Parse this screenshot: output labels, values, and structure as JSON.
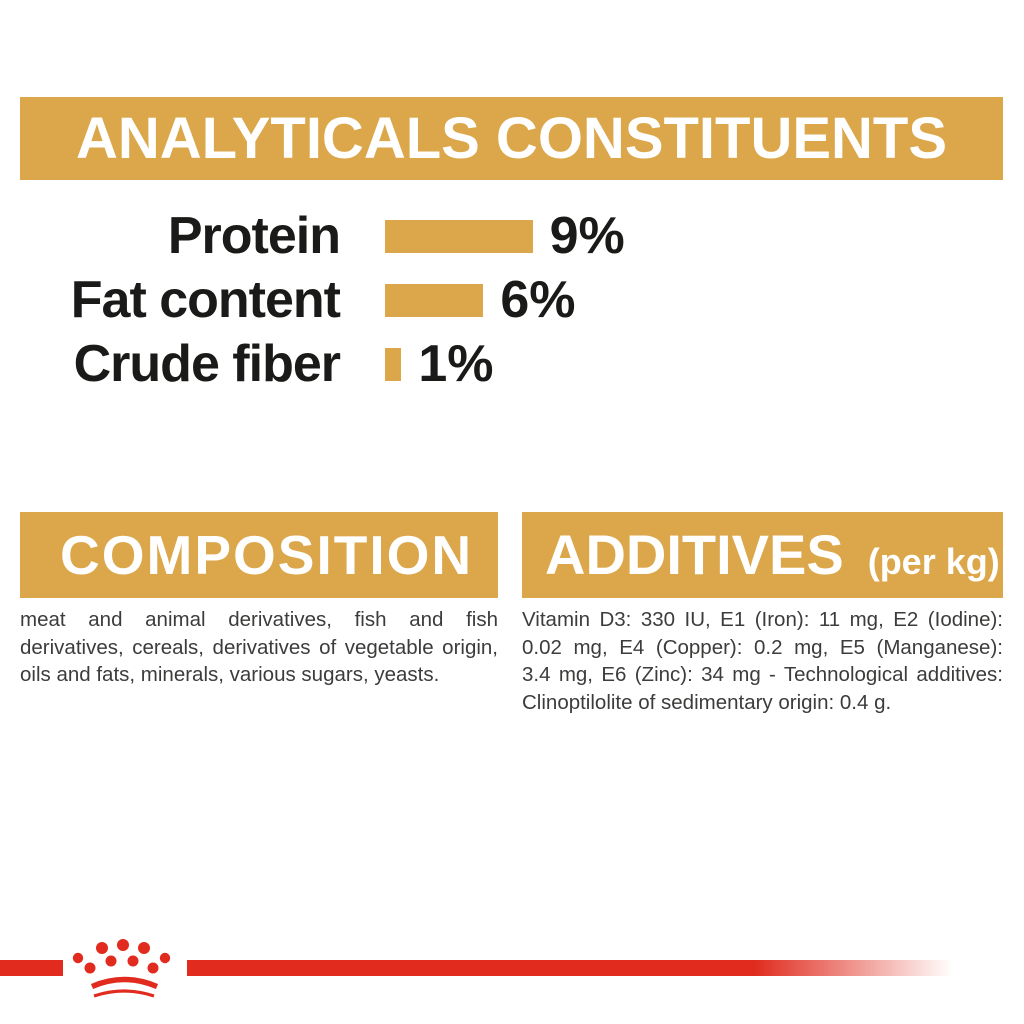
{
  "analyticals": {
    "title": "ANALYTICALS CONSTITUENTS",
    "rows": [
      {
        "label": "Protein",
        "percent": 9,
        "value": "9%"
      },
      {
        "label": "Fat content",
        "percent": 6,
        "value": "6%"
      },
      {
        "label": "Crude fiber",
        "percent": 1,
        "value": "1%"
      }
    ]
  },
  "composition": {
    "title": "COMPOSITION",
    "lines": [
      "meat and animal derivatives, fish and fish",
      "derivatives, cereals, derivatives of vegetable origin,",
      "oils and fats, minerals, various sugars, yeasts."
    ]
  },
  "additives": {
    "title": "ADDITIVES",
    "title_suffix": "(per kg)",
    "lines": [
      "Vitamin D3: 330 IU, E1 (Iron): 11 mg, E2 (Iodine):",
      "0.02 mg, E4 (Copper): 0.2 mg, E5 (Manganese):",
      "3.4 mg, E6 (Zinc): 34 mg - Technological additives:",
      "Clinoptilolite of sedimentary origin: 0.4 g."
    ]
  },
  "brand": {
    "logo": "royal-canin-crown"
  },
  "colors": {
    "gold": "#DBA74A",
    "red": "#E02B1E",
    "heading_text": "#FFFFFF",
    "chart_text": "#1A1A18",
    "body_text": "#3C3C3B"
  },
  "chart_data": {
    "type": "bar",
    "orientation": "horizontal",
    "title": "ANALYTICALS CONSTITUENTS",
    "categories": [
      "Protein",
      "Fat content",
      "Crude fiber"
    ],
    "values": [
      9,
      6,
      1
    ],
    "unit": "%",
    "data_labels": [
      "9%",
      "6%",
      "1%"
    ],
    "bar_color": "#DBA74A",
    "xlim": [
      0,
      10
    ],
    "grid": false,
    "legend": false
  }
}
